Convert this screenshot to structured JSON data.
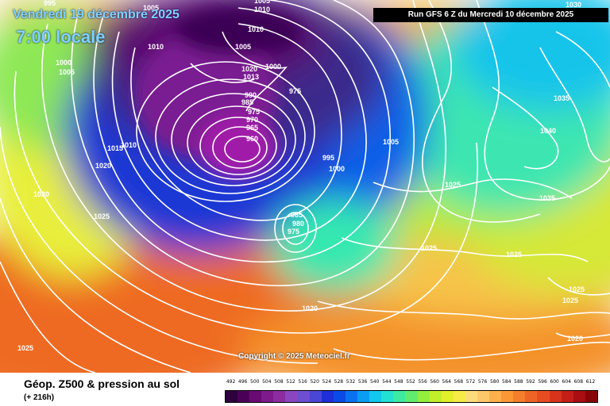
{
  "header": {
    "date": "Vendredi 19 décembre 2025",
    "time": "7:00 locale",
    "run": "Run GFS 6 Z du Mercredi 10 décembre 2025"
  },
  "copyright": "Copyright © 2025 Meteociel.fr",
  "footer": {
    "title": "Géop. Z500 & pression au sol",
    "subtitle": "(+ 216h)"
  },
  "legend": {
    "values": [
      "492",
      "496",
      "500",
      "504",
      "508",
      "512",
      "516",
      "520",
      "524",
      "528",
      "532",
      "536",
      "540",
      "544",
      "548",
      "552",
      "556",
      "560",
      "564",
      "568",
      "572",
      "576",
      "580",
      "584",
      "588",
      "592",
      "596",
      "600",
      "604",
      "608",
      "612"
    ],
    "colors": [
      "#2e003e",
      "#4b0058",
      "#6a0a74",
      "#7f1a8c",
      "#8c2ca0",
      "#8a46c0",
      "#6e4ed2",
      "#4a46d6",
      "#1e2fd8",
      "#0a4ae6",
      "#0a72f0",
      "#0a9ef2",
      "#12c6ee",
      "#22e0d2",
      "#3eeaa2",
      "#62ec6e",
      "#94ee3e",
      "#c2ef2a",
      "#e2f02a",
      "#f6ec46",
      "#fcdc7a",
      "#fcc86a",
      "#fcb04a",
      "#fa9836",
      "#f47e2c",
      "#ee6426",
      "#e64c20",
      "#d8341c",
      "#c41e18",
      "#a80e12",
      "#880608"
    ]
  },
  "isobar_labels": [
    "995",
    "1005",
    "1010",
    "1005",
    "1010",
    "1000",
    "1005",
    "1010",
    "1005",
    "1020",
    "1013",
    "1000",
    "975",
    "990",
    "985",
    "975",
    "970",
    "965",
    "960",
    "1030",
    "1015",
    "1010",
    "1020",
    "1005",
    "995",
    "1000",
    "1040",
    "1035",
    "1025",
    "1030",
    "1025",
    "1035",
    "985",
    "980",
    "975",
    "1025",
    "1025",
    "1020",
    "1025",
    "1025",
    "1020",
    "1025"
  ]
}
